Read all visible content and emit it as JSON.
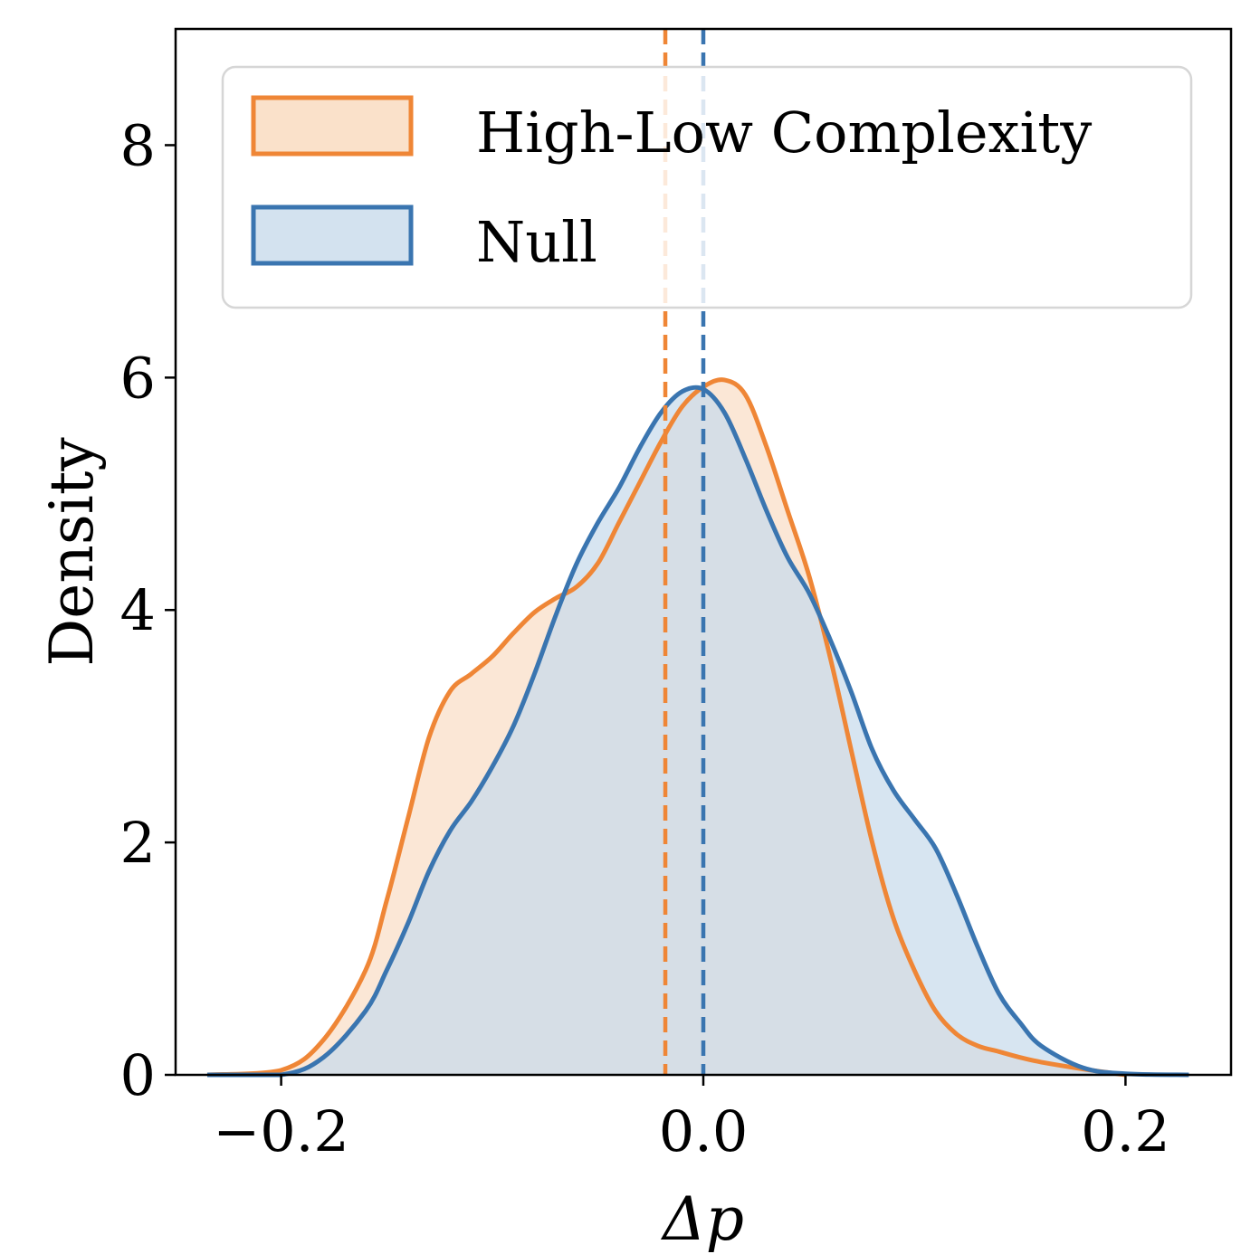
{
  "chart_data": {
    "type": "area",
    "xlabel": "Δp",
    "ylabel": "Density",
    "xlim": [
      -0.25,
      0.25
    ],
    "ylim": [
      0,
      9
    ],
    "xticks": [
      {
        "value": -0.2,
        "label": "−0.2"
      },
      {
        "value": 0.0,
        "label": "0.0"
      },
      {
        "value": 0.2,
        "label": "0.2"
      }
    ],
    "yticks": [
      {
        "value": 0,
        "label": "0"
      },
      {
        "value": 2,
        "label": "2"
      },
      {
        "value": 4,
        "label": "4"
      },
      {
        "value": 6,
        "label": "6"
      },
      {
        "value": 8,
        "label": "8"
      }
    ],
    "grid": false,
    "legend": "upper",
    "series": [
      {
        "name": "High-Low Complexity",
        "color": "#ef8636",
        "fill": "#f9d9bd",
        "mean": -0.018,
        "x": [
          -0.235,
          -0.2,
          -0.18,
          -0.16,
          -0.15,
          -0.14,
          -0.13,
          -0.12,
          -0.11,
          -0.1,
          -0.09,
          -0.08,
          -0.07,
          -0.06,
          -0.05,
          -0.04,
          -0.03,
          -0.02,
          -0.01,
          0.0,
          0.01,
          0.02,
          0.03,
          0.04,
          0.05,
          0.06,
          0.07,
          0.08,
          0.09,
          0.1,
          0.11,
          0.12,
          0.13,
          0.14,
          0.15,
          0.16,
          0.18,
          0.2
        ],
        "y": [
          0.0,
          0.04,
          0.3,
          0.9,
          1.5,
          2.2,
          2.9,
          3.3,
          3.45,
          3.6,
          3.8,
          3.98,
          4.1,
          4.2,
          4.4,
          4.75,
          5.1,
          5.45,
          5.75,
          5.92,
          5.98,
          5.85,
          5.4,
          4.85,
          4.3,
          3.6,
          2.8,
          2.0,
          1.35,
          0.9,
          0.55,
          0.35,
          0.25,
          0.2,
          0.15,
          0.11,
          0.05,
          0.0
        ]
      },
      {
        "name": "Null",
        "color": "#3a75b0",
        "fill": "#c8dbeb",
        "mean": 0.0,
        "x": [
          -0.235,
          -0.2,
          -0.18,
          -0.16,
          -0.15,
          -0.14,
          -0.13,
          -0.12,
          -0.11,
          -0.1,
          -0.09,
          -0.08,
          -0.07,
          -0.06,
          -0.05,
          -0.04,
          -0.03,
          -0.02,
          -0.01,
          0.0,
          0.01,
          0.02,
          0.03,
          0.04,
          0.05,
          0.06,
          0.07,
          0.08,
          0.09,
          0.1,
          0.11,
          0.12,
          0.13,
          0.14,
          0.15,
          0.16,
          0.18,
          0.2,
          0.23
        ],
        "y": [
          0.0,
          0.0,
          0.15,
          0.55,
          0.9,
          1.3,
          1.75,
          2.1,
          2.35,
          2.65,
          3.0,
          3.45,
          3.95,
          4.4,
          4.75,
          5.05,
          5.4,
          5.7,
          5.88,
          5.9,
          5.7,
          5.3,
          4.85,
          4.45,
          4.15,
          3.75,
          3.3,
          2.8,
          2.45,
          2.2,
          1.95,
          1.55,
          1.1,
          0.7,
          0.45,
          0.25,
          0.06,
          0.01,
          0.0
        ]
      }
    ]
  }
}
